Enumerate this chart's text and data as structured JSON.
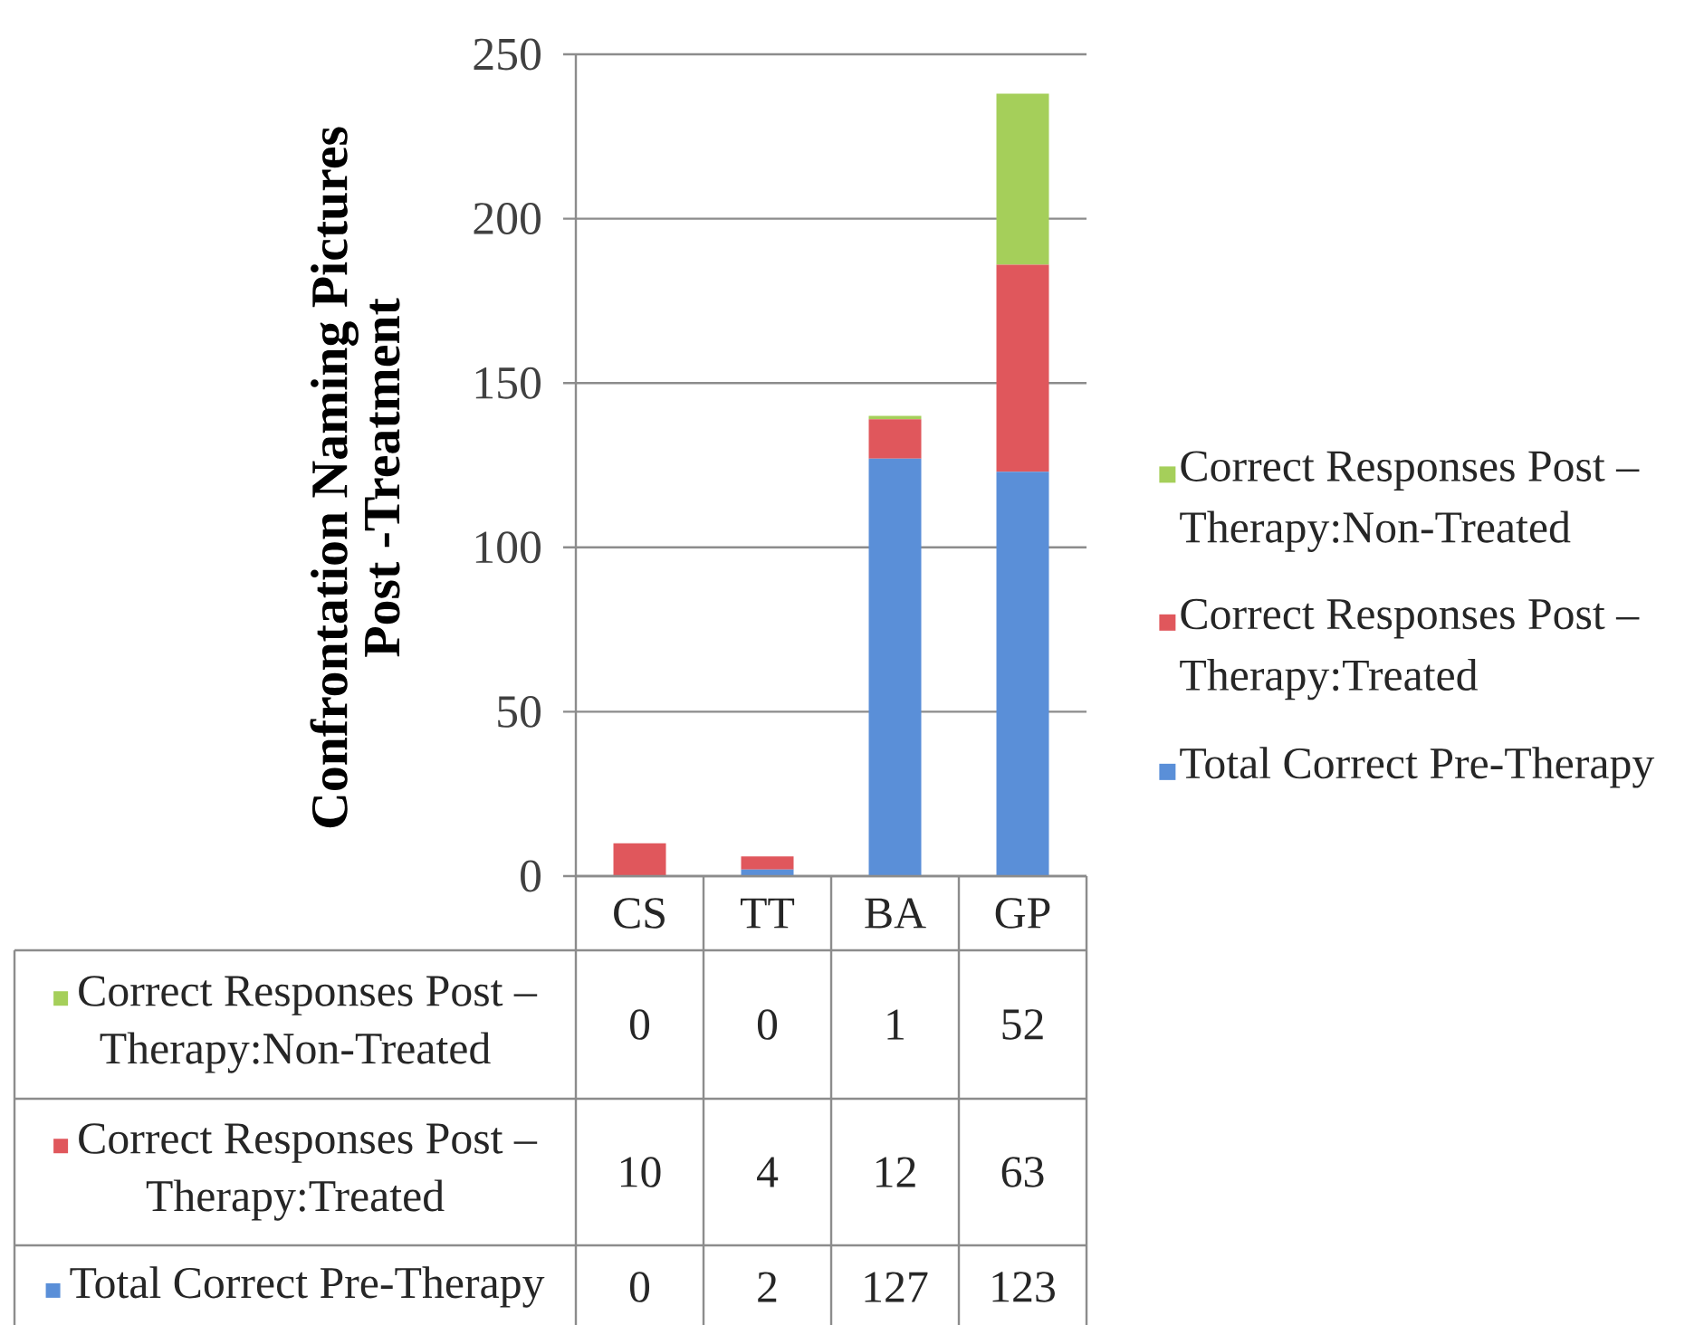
{
  "chart_data": {
    "type": "bar",
    "stacked": true,
    "ylabel": "Confrontation Naming Pictures Post -Treatment",
    "categories": [
      "CS",
      "TT",
      "BA",
      "GP"
    ],
    "series": [
      {
        "name": "Total Correct Pre-Therapy",
        "color": "#5a8fd8",
        "values": [
          0,
          2,
          127,
          123
        ]
      },
      {
        "name": "Correct Responses Post – Therapy:Treated",
        "color": "#e0575c",
        "values": [
          10,
          4,
          12,
          63
        ]
      },
      {
        "name": "Correct Responses Post – Therapy:Non-Treated",
        "color": "#a5cf5a",
        "values": [
          0,
          0,
          1,
          52
        ]
      }
    ],
    "ylim": [
      0,
      250
    ],
    "yticks": [
      0,
      50,
      100,
      150,
      200,
      250
    ],
    "grid": "y",
    "legend": "right",
    "data_labels": true
  }
}
